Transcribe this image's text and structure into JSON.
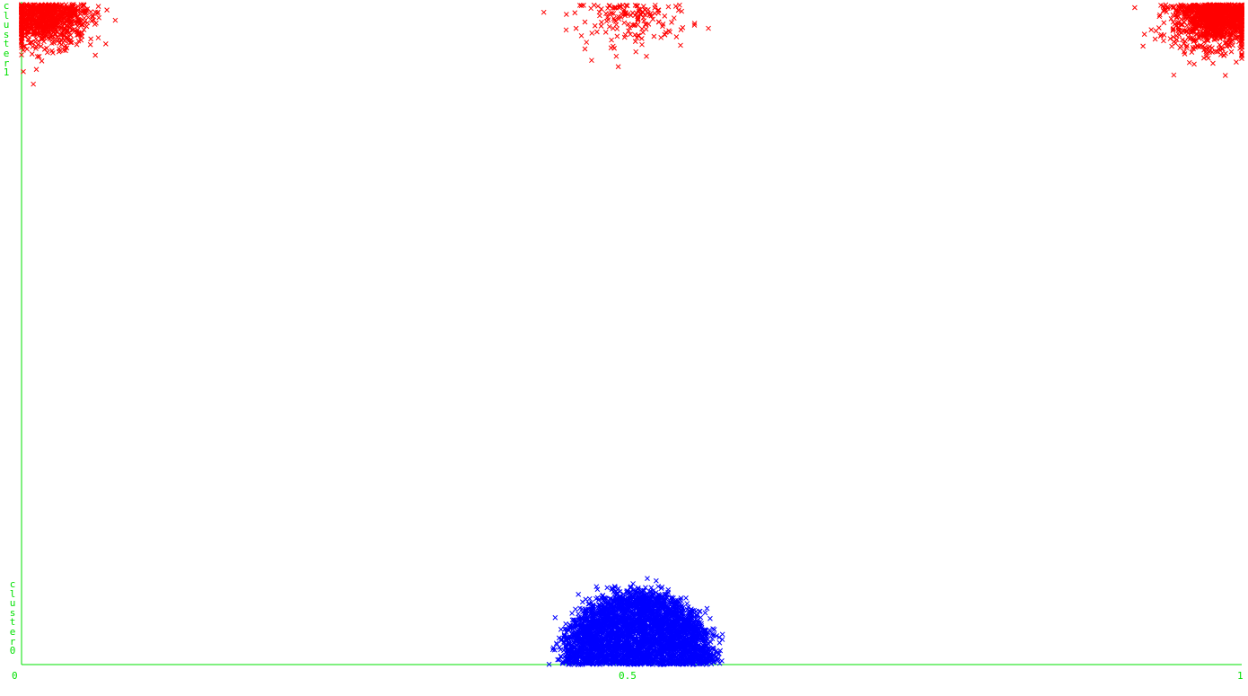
{
  "chart_data": {
    "type": "scatter",
    "title": "",
    "xlabel": "",
    "ylabel": "",
    "xlim": [
      0,
      1
    ],
    "ylim": [
      0,
      1
    ],
    "x_ticks": [
      "0",
      "0.5",
      "1"
    ],
    "y_category_labels": [
      "cluster0",
      "cluster1"
    ],
    "series": [
      {
        "name": "cluster1",
        "color": "#ff0000",
        "marker": "x",
        "description": "points concentrated at y≈1 in three groups",
        "groups": [
          {
            "x_center": 0.02,
            "x_spread": 0.03,
            "count": 900
          },
          {
            "x_center": 0.5,
            "x_spread": 0.04,
            "count": 160
          },
          {
            "x_center": 0.98,
            "x_spread": 0.03,
            "count": 1300
          }
        ]
      },
      {
        "name": "cluster0",
        "color": "#0000ff",
        "marker": "x",
        "description": "semicircular blob at y≈0 centered at x≈0.5",
        "groups": [
          {
            "x_center": 0.505,
            "x_spread": 0.055,
            "count": 4000
          }
        ]
      }
    ],
    "axis_color": "#00e000",
    "grid": false
  }
}
